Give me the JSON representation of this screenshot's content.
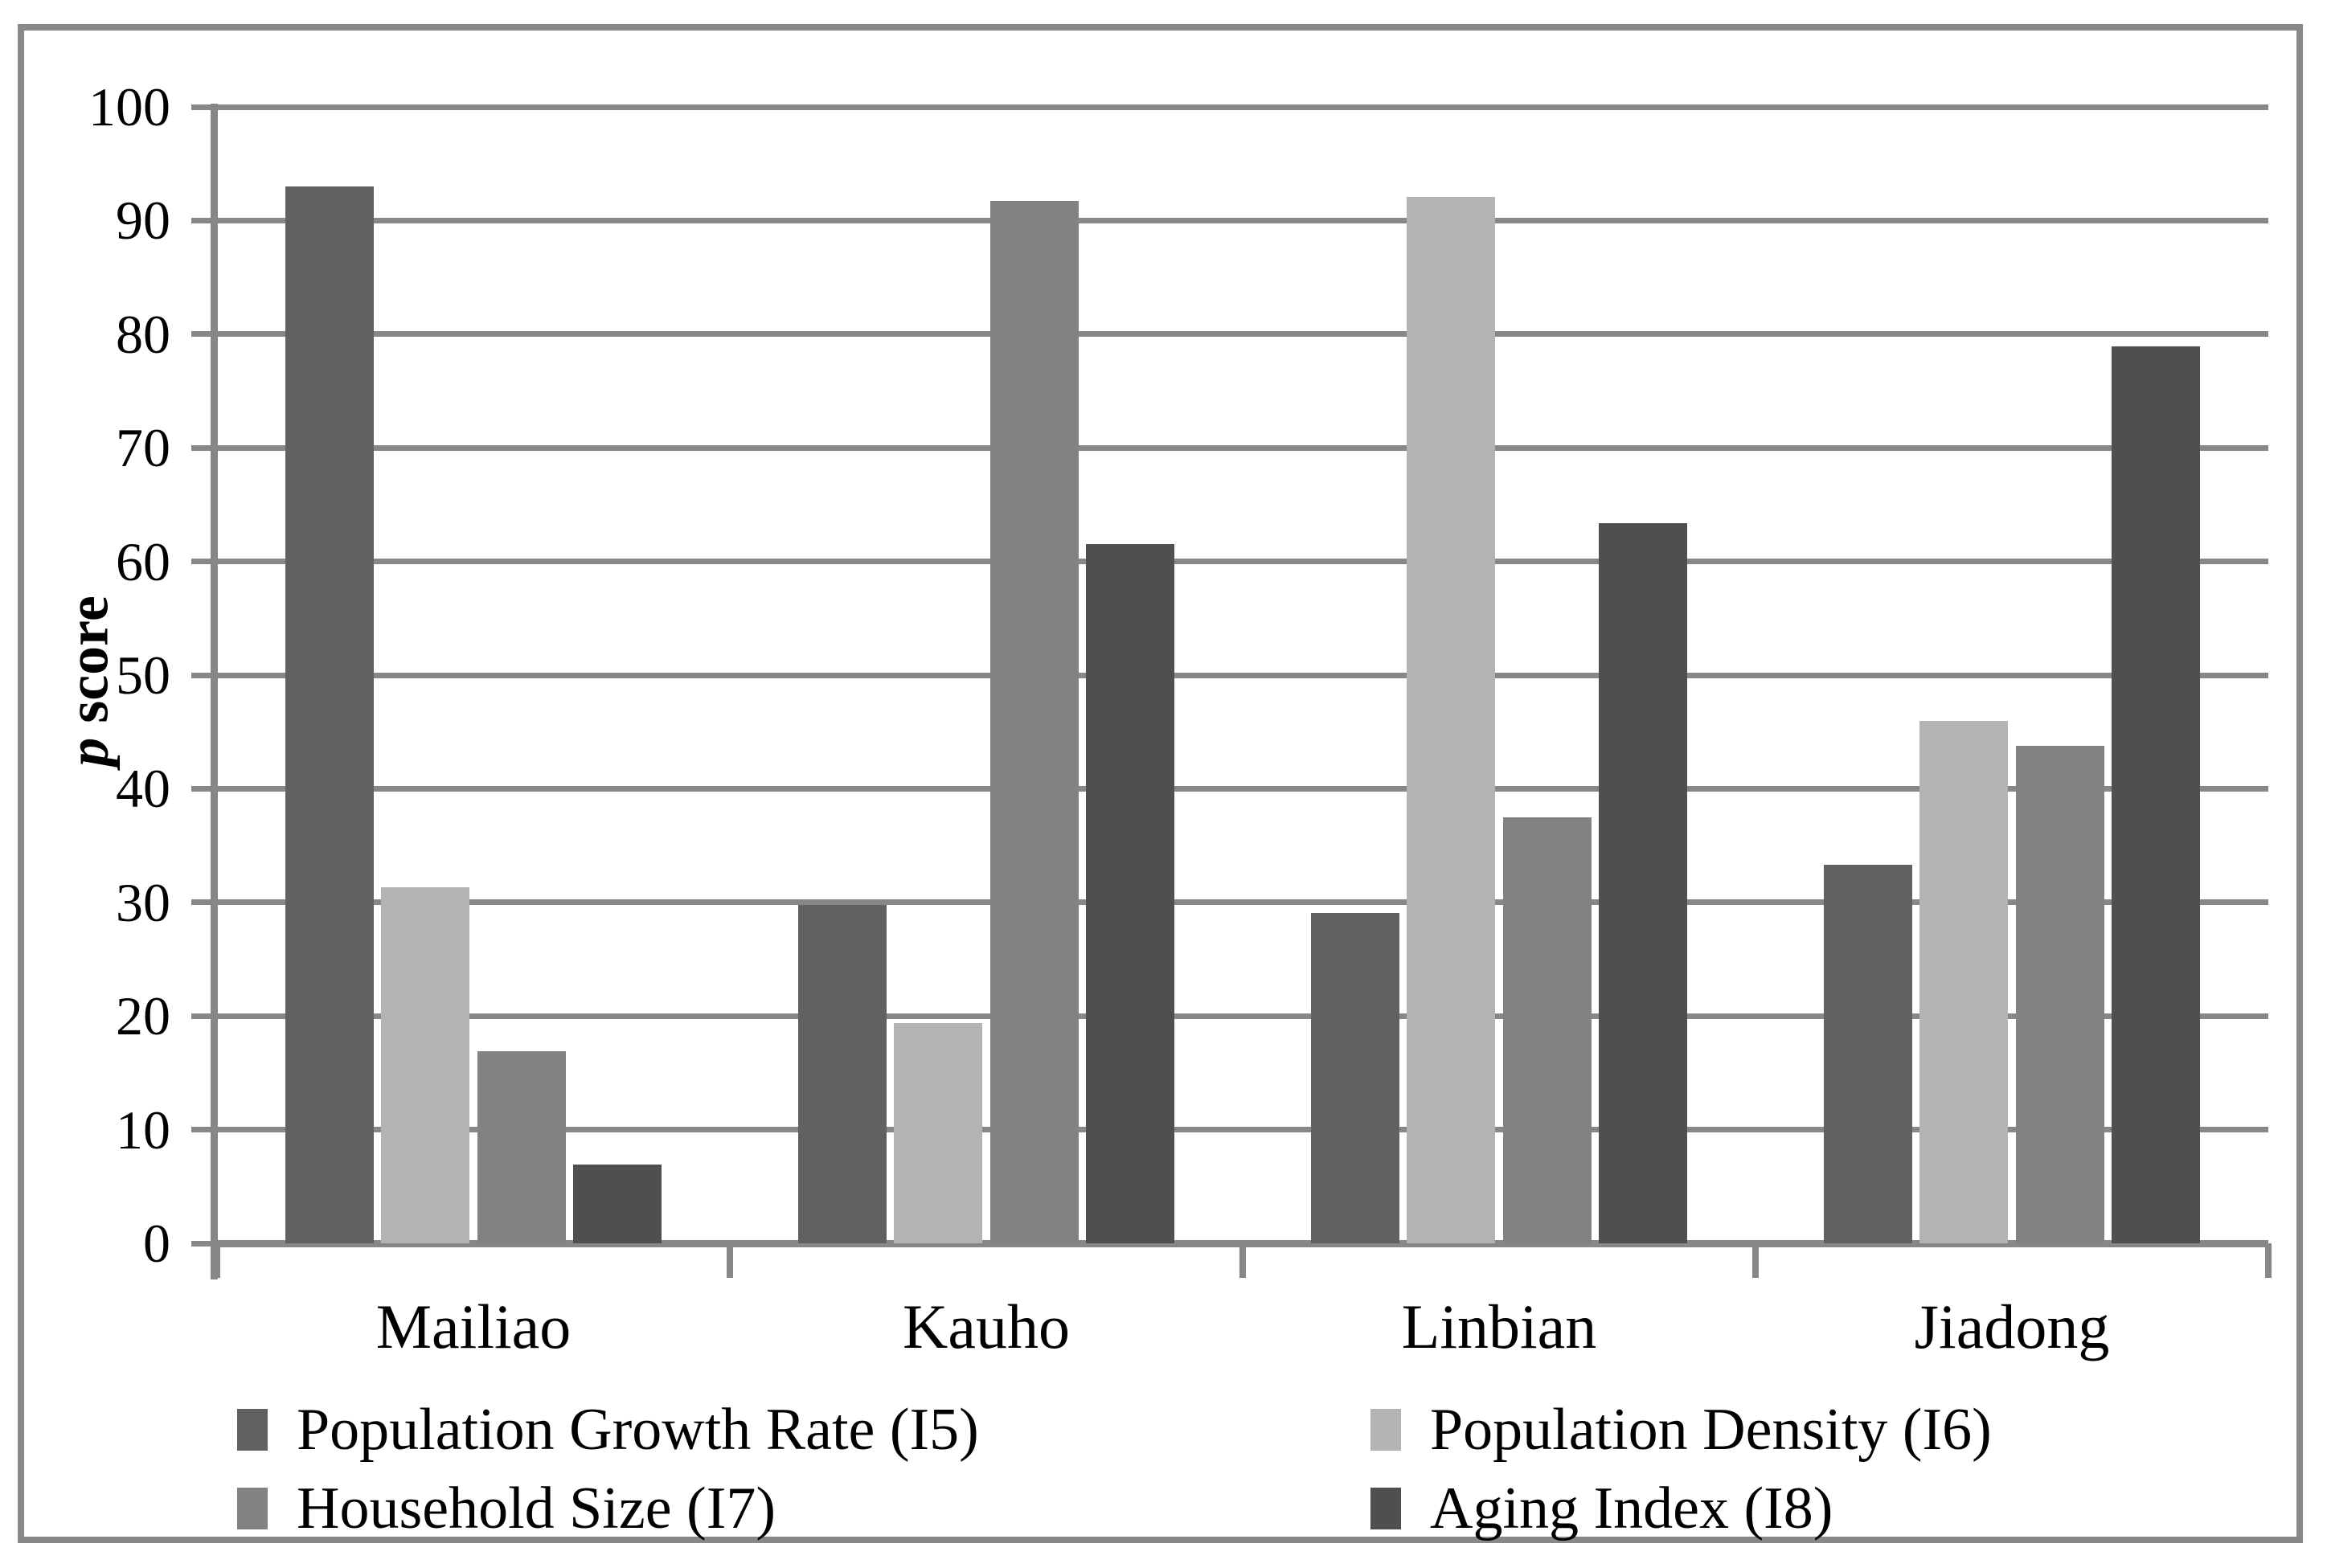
{
  "chart_data": {
    "type": "bar",
    "title": "",
    "ylabel": "p score",
    "ylabel_italic_part": "p",
    "ylabel_regular_part": " score",
    "categories": [
      "Mailiao",
      "Kauho",
      "Linbian",
      "Jiadong"
    ],
    "series": [
      {
        "name": "Population Growth Rate (I5)",
        "color": "#616161",
        "values": [
          93.0,
          29.8,
          29.1,
          33.3
        ]
      },
      {
        "name": "Population Density (I6)",
        "color": "#b3b3b3",
        "values": [
          31.3,
          19.4,
          92.1,
          46.0
        ]
      },
      {
        "name": "Household Size (I7)",
        "color": "#828282",
        "values": [
          16.9,
          91.7,
          37.5,
          43.8
        ]
      },
      {
        "name": "Aging Index (I8)",
        "color": "#4f4f4f",
        "values": [
          6.9,
          61.5,
          63.4,
          78.9
        ]
      }
    ],
    "ylim": [
      0,
      100
    ],
    "ytick_step": 10,
    "ytick_labels": [
      "0",
      "10",
      "20",
      "30",
      "40",
      "50",
      "60",
      "70",
      "80",
      "90",
      "100"
    ],
    "grid": true,
    "legend_position": "bottom, two columns",
    "legend_column_order": [
      [
        0,
        2
      ],
      [
        1,
        3
      ]
    ],
    "axis_color": "#878787",
    "border_color": "#888888",
    "text_color": "#000000",
    "background_color": "#ffffff"
  }
}
